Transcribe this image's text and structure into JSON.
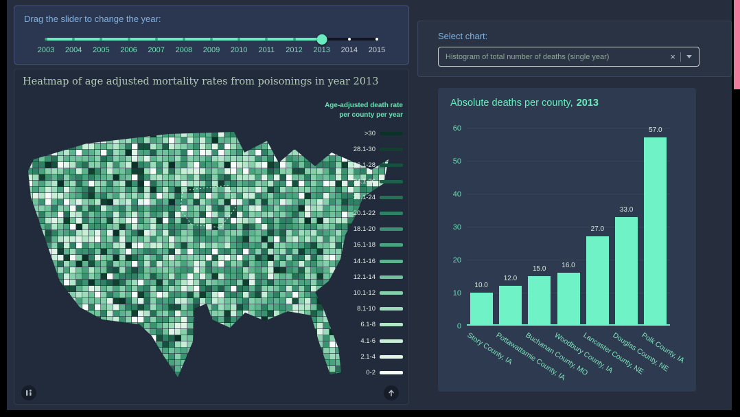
{
  "colors": {
    "accent_mint": "#69edc0",
    "accent_blue": "#7fb2e2",
    "page_bg": "#262e3e",
    "pink_strip": "#f17ca0",
    "bar_color": "#6ff2c6"
  },
  "icons": {
    "clear": "×"
  },
  "slider": {
    "label": "Drag the slider to change the year:",
    "years": [
      "2003",
      "2004",
      "2005",
      "2006",
      "2007",
      "2008",
      "2009",
      "2010",
      "2011",
      "2012",
      "2013",
      "2014",
      "2015"
    ],
    "selected_year": "2013"
  },
  "map": {
    "title": "Heatmap of age adjusted mortality rates from poisonings in year 2013",
    "legend_title": [
      "Age-adjusted death rate",
      "per county per year"
    ],
    "legend_bins": [
      ">30",
      "28.1-30",
      "26.1-28",
      "24.1-26",
      "22.1-24",
      "20.1-22",
      "18.1-20",
      "16.1-18",
      "14.1-16",
      "12.1-14",
      "10.1-12",
      "8.1-10",
      "6.1-8",
      "4.1-6",
      "2.1-4",
      "0-2"
    ],
    "legend_colors": [
      "#0b3226",
      "#11402f",
      "#17503c",
      "#1e6049",
      "#267056",
      "#2f8163",
      "#3b9271",
      "#4aa37f",
      "#5cb38d",
      "#70c29b",
      "#86d0ab",
      "#9cdcba",
      "#b3e6c9",
      "#c9eed7",
      "#e0f5e8",
      "#f6fcf8"
    ],
    "palette": [
      "#0b3226",
      "#11402f",
      "#17503c",
      "#1e6049",
      "#267056",
      "#2f8163",
      "#3b9271",
      "#4aa37f",
      "#5cb38d",
      "#70c29b",
      "#86d0ab",
      "#9cdcba",
      "#b3e6c9",
      "#c9eed7",
      "#e0f5e8",
      "#f6fcf8"
    ]
  },
  "chart_panel": {
    "select_label": "Select chart:",
    "dropdown_value": "Histogram of total number of deaths (single year)"
  },
  "chart_data": {
    "type": "bar",
    "title_prefix": "Absolute deaths per county,",
    "title_year": "2013",
    "categories": [
      "Story County, IA",
      "Pottawattamie County, IA",
      "Buchanan County, MO",
      "Woodbury County, IA",
      "Lancaster County, NE",
      "Douglas County, NE",
      "Polk County, IA"
    ],
    "values": [
      10,
      12,
      15,
      16,
      27,
      33,
      57
    ],
    "value_labels": [
      "10.0",
      "12.0",
      "15.0",
      "16.0",
      "27.0",
      "33.0",
      "57.0"
    ],
    "ylim": [
      0,
      60
    ],
    "yticks": [
      0,
      10,
      20,
      30,
      40,
      50,
      60
    ],
    "grid": true,
    "legend": "none",
    "bar_color": "#6ff2c6"
  }
}
